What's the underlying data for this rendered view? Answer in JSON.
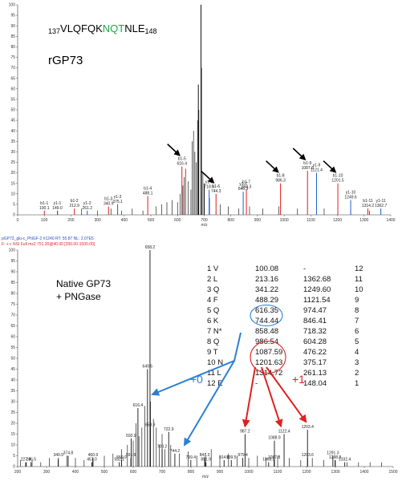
{
  "chart_data": [
    {
      "type": "bar",
      "title_prefix": "137",
      "title_seq_a": "VLQFQK",
      "title_seq_b": "NQT",
      "title_seq_c": "NLE",
      "title_suffix": "148",
      "label": "rGP73",
      "xlabel": "m/z",
      "xlim": [
        0,
        1400
      ],
      "ylim": [
        0,
        100
      ],
      "xticks": [
        0,
        100,
        200,
        300,
        400,
        500,
        600,
        700,
        800,
        900,
        1000,
        1100,
        1200,
        1300,
        1400
      ],
      "yticks": [
        0,
        5,
        10,
        15,
        20,
        25,
        30,
        35,
        40,
        45,
        50,
        55,
        60,
        65,
        70,
        75,
        80,
        85,
        90,
        95,
        100
      ],
      "noise": [
        [
          150,
          2
        ],
        [
          240,
          3
        ],
        [
          300,
          2
        ],
        [
          350,
          3
        ],
        [
          390,
          2
        ],
        [
          430,
          3
        ],
        [
          470,
          2
        ],
        [
          520,
          4
        ],
        [
          540,
          5
        ],
        [
          560,
          6
        ],
        [
          580,
          7
        ],
        [
          600,
          6
        ],
        [
          610,
          10
        ],
        [
          620,
          14
        ],
        [
          625,
          18
        ],
        [
          630,
          22
        ],
        [
          640,
          16
        ],
        [
          650,
          12
        ],
        [
          655,
          35
        ],
        [
          660,
          40
        ],
        [
          665,
          30
        ],
        [
          670,
          25
        ],
        [
          675,
          45
        ],
        [
          680,
          50
        ],
        [
          690,
          70
        ],
        [
          695,
          20
        ],
        [
          700,
          12
        ],
        [
          720,
          8
        ],
        [
          760,
          5
        ],
        [
          790,
          4
        ],
        [
          830,
          3
        ],
        [
          870,
          4
        ],
        [
          920,
          3
        ],
        [
          980,
          4
        ],
        [
          1050,
          3
        ],
        [
          1150,
          3
        ],
        [
          1250,
          2
        ],
        [
          1320,
          2
        ]
      ],
      "major_peaks": [
        [
          688,
          100
        ],
        [
          678,
          62
        ],
        [
          700,
          15
        ]
      ],
      "b_ions": [
        [
          100.1,
          2,
          "b1-1"
        ],
        [
          212.9,
          3,
          "b1-2"
        ],
        [
          340.9,
          4,
          "b1-3"
        ],
        [
          488.1,
          9,
          "b1-4"
        ],
        [
          616.4,
          23,
          "b1-5"
        ],
        [
          744.3,
          10,
          "b1-6"
        ],
        [
          858.3,
          12,
          "b1-7"
        ],
        [
          986.3,
          15,
          "b1-8"
        ],
        [
          1087.6,
          21,
          "b1-9"
        ],
        [
          1201.5,
          15,
          "b1-10"
        ],
        [
          1314.2,
          3,
          "b1-11"
        ]
      ],
      "y_ions": [
        [
          149.0,
          2,
          "y1-1"
        ],
        [
          261.2,
          2,
          "y1-2"
        ],
        [
          375.1,
          5,
          "y1-3"
        ],
        [
          718.6,
          12,
          "y1-6"
        ],
        [
          846.3,
          11,
          "y1-7"
        ],
        [
          1121.4,
          20,
          "y1-9"
        ],
        [
          1249.6,
          7,
          "y1-10"
        ],
        [
          1362.7,
          3,
          "y1-11"
        ]
      ],
      "peak_labels": [
        {
          "mz": 100.1,
          "text": "100.1",
          "name": "b1-1"
        },
        {
          "mz": 149.0,
          "text": "149.0",
          "name": "y1-1"
        },
        {
          "mz": 212.9,
          "text": "212.9",
          "name": "b1-2"
        },
        {
          "mz": 261.2,
          "text": "261.2",
          "name": "y1-2"
        },
        {
          "mz": 340.9,
          "text": "340.9",
          "name": "b1-3"
        },
        {
          "mz": 375.1,
          "text": "375.1",
          "name": "y1-3"
        },
        {
          "mz": 488.1,
          "text": "488.1",
          "name": "b1-4"
        },
        {
          "mz": 616.4,
          "text": "616.4",
          "name": "b1-5"
        },
        {
          "mz": 718.6,
          "text": "718.6",
          "name": "y1-6"
        },
        {
          "mz": 744.3,
          "text": "744.3",
          "name": "b1-6"
        },
        {
          "mz": 846.3,
          "text": "846.3",
          "name": "y1-7"
        },
        {
          "mz": 858.3,
          "text": "858.3",
          "name": "b1-7"
        },
        {
          "mz": 986.3,
          "text": "986.3",
          "name": "b1-8"
        },
        {
          "mz": 1087.6,
          "text": "1087.6",
          "name": "b1-9"
        },
        {
          "mz": 1121.4,
          "text": "1121.4",
          "name": "y1-9"
        },
        {
          "mz": 1201.5,
          "text": "1201.5",
          "name": "b1-10"
        },
        {
          "mz": 1249.6,
          "text": "1249.6",
          "name": "y1-10"
        },
        {
          "mz": 1314.2,
          "text": "1314.2",
          "name": "b1-11"
        },
        {
          "mz": 1362.7,
          "text": "1362.7",
          "name": "y1-11"
        }
      ],
      "arrows_at_mz": [
        616.4,
        744.3,
        986.3,
        1087.6,
        1201.5
      ]
    },
    {
      "type": "bar",
      "header_line1": "pGP73_glu-c_PNGF-2 #1240   RT: 55.87   NL: 2.07E5",
      "header_line2": "F: + c NSI Full ms2 751.30@40.00 [200.00-1500.00]",
      "label_line1": "Native GP73",
      "label_line2": "+ PNGase",
      "xlabel": "m/z",
      "xlim": [
        200,
        1500
      ],
      "ylim": [
        0,
        100
      ],
      "xticks": [
        200,
        300,
        400,
        500,
        600,
        700,
        800,
        900,
        1000,
        1100,
        1200,
        1300,
        1400,
        1500
      ],
      "yticks": [
        0,
        5,
        10,
        15,
        20,
        25,
        30,
        35,
        40,
        45,
        50,
        55,
        60,
        65,
        70,
        75,
        80,
        85,
        90,
        95,
        100
      ],
      "noise": [
        [
          210,
          3
        ],
        [
          230,
          2
        ],
        [
          250,
          3
        ],
        [
          280,
          2
        ],
        [
          310,
          4
        ],
        [
          340,
          3
        ],
        [
          370,
          5
        ],
        [
          400,
          4
        ],
        [
          430,
          3
        ],
        [
          460,
          4
        ],
        [
          500,
          5
        ],
        [
          530,
          6
        ],
        [
          560,
          8
        ],
        [
          580,
          10
        ],
        [
          600,
          12
        ],
        [
          610,
          20
        ],
        [
          620,
          14
        ],
        [
          630,
          18
        ],
        [
          640,
          28
        ],
        [
          660,
          30
        ],
        [
          670,
          22
        ],
        [
          680,
          18
        ],
        [
          690,
          10
        ],
        [
          700,
          15
        ],
        [
          710,
          8
        ],
        [
          730,
          10
        ],
        [
          760,
          6
        ],
        [
          790,
          7
        ],
        [
          820,
          5
        ],
        [
          850,
          6
        ],
        [
          870,
          8
        ],
        [
          900,
          5
        ],
        [
          930,
          6
        ],
        [
          960,
          5
        ],
        [
          1000,
          4
        ],
        [
          1030,
          5
        ],
        [
          1060,
          4
        ],
        [
          1100,
          5
        ],
        [
          1140,
          4
        ],
        [
          1180,
          3
        ],
        [
          1220,
          4
        ],
        [
          1260,
          3
        ],
        [
          1300,
          3
        ],
        [
          1340,
          2
        ],
        [
          1380,
          2
        ],
        [
          1420,
          2
        ],
        [
          1460,
          2
        ]
      ],
      "peaks": [
        {
          "mz": 658.2,
          "y": 100,
          "text": "658.2"
        },
        {
          "mz": 649.5,
          "y": 45,
          "text": "649.5"
        },
        {
          "mz": 616.4,
          "y": 27,
          "text": "616.4"
        },
        {
          "mz": 658.9,
          "y": 18,
          "text": "658.9"
        },
        {
          "mz": 722.9,
          "y": 16,
          "text": "722.9"
        },
        {
          "mz": 592.9,
          "y": 13,
          "text": "592.9"
        },
        {
          "mz": 700.2,
          "y": 8,
          "text": "700.2"
        },
        {
          "mz": 744.2,
          "y": 6,
          "text": "744.2"
        },
        {
          "mz": 987.2,
          "y": 15,
          "text": "987.2"
        },
        {
          "mz": 1088.9,
          "y": 12,
          "text": "1088.9"
        },
        {
          "mz": 1122.4,
          "y": 15,
          "text": "1122.4"
        },
        {
          "mz": 1203.4,
          "y": 17,
          "text": "1203.4"
        },
        {
          "mz": 1203.6,
          "y": 4,
          "text": "1203.6"
        },
        {
          "mz": 1291.3,
          "y": 5,
          "text": "1291.3"
        },
        {
          "mz": 1298.8,
          "y": 3,
          "text": "1298.8"
        },
        {
          "mz": 1332.4,
          "y": 2,
          "text": "1332.4"
        },
        {
          "mz": 1087.8,
          "y": 3,
          "text": "1087.8"
        },
        {
          "mz": 1068.8,
          "y": 2,
          "text": "1068.8"
        },
        {
          "mz": 979.4,
          "y": 4,
          "text": "979.4"
        },
        {
          "mz": 939.5,
          "y": 3,
          "text": "939.5"
        },
        {
          "mz": 914.6,
          "y": 3,
          "text": "914.6"
        },
        {
          "mz": 847.3,
          "y": 4,
          "text": "847.3"
        },
        {
          "mz": 799.4,
          "y": 3,
          "text": "799.4"
        },
        {
          "mz": 851.9,
          "y": 2,
          "text": "851.9"
        },
        {
          "mz": 559.9,
          "y": 3,
          "text": "559.9"
        },
        {
          "mz": 552.1,
          "y": 2,
          "text": "552.1"
        },
        {
          "mz": 591.9,
          "y": 4,
          "text": "591.9"
        },
        {
          "mz": 460.9,
          "y": 4,
          "text": "460.9"
        },
        {
          "mz": 457.0,
          "y": 2,
          "text": "457.0"
        },
        {
          "mz": 374.8,
          "y": 5,
          "text": "374.8"
        },
        {
          "mz": 340.9,
          "y": 4,
          "text": "340.9"
        },
        {
          "mz": 246.5,
          "y": 2,
          "text": "246.5"
        },
        {
          "mz": 227.9,
          "y": 2,
          "text": "227.9"
        }
      ],
      "table": [
        [
          "1 V",
          "100.08",
          "-",
          "12"
        ],
        [
          "2 L",
          "213.16",
          "1362.68",
          "11"
        ],
        [
          "3 Q",
          "341.22",
          "1249.60",
          "10"
        ],
        [
          "4 F",
          "488.29",
          "1121.54",
          "9"
        ],
        [
          "5 Q",
          "616.35",
          "974.47",
          "8"
        ],
        [
          "6 K",
          "744.44",
          "846.41",
          "7"
        ],
        [
          "7 N*",
          "858.48",
          "718.32",
          "6"
        ],
        [
          "8 Q",
          "986.54",
          "604.28",
          "5"
        ],
        [
          "9 T",
          "1087.59",
          "476.22",
          "4"
        ],
        [
          "10 N",
          "1201.63",
          "375.17",
          "3"
        ],
        [
          "11 L",
          "1314.72",
          "261.13",
          "2"
        ],
        [
          "12 E",
          "-",
          "148.04",
          "1"
        ]
      ],
      "shift_blue": "+0",
      "shift_red": "+1"
    }
  ],
  "colors": {
    "b_ion": "#e01e1e",
    "y_ion": "#1a5fd6",
    "green": "#1aa84a",
    "blue_arrow": "#2b7fd6",
    "red_arrow": "#e02020",
    "black": "#000000"
  }
}
